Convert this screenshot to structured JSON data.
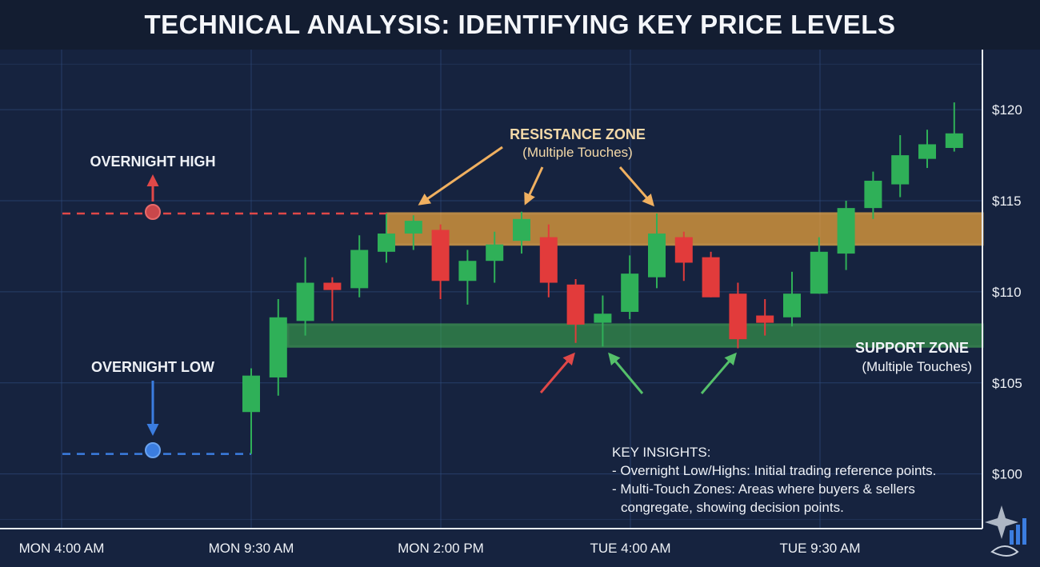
{
  "title": "TECHNICAL ANALYSIS: IDENTIFYING KEY PRICE LEVELS",
  "colors": {
    "background": "#16233f",
    "grid": "#2f4a7a",
    "bullish": "#2fb058",
    "bearish": "#e23b3b",
    "resistance": "#f0a63c",
    "support": "#3fb34f",
    "overnight_high": "#e04848",
    "overnight_low": "#3b7de0",
    "annotation_text": "#f4d9a8"
  },
  "chart_data": {
    "type": "candlestick",
    "title": "TECHNICAL ANALYSIS: IDENTIFYING KEY PRICE LEVELS",
    "xlabel": "",
    "ylabel": "",
    "x_tick_labels": [
      "MON 4:00 AM",
      "MON 9:30 AM",
      "MON 2:00 PM",
      "TUE 4:00 AM",
      "TUE 9:30 AM"
    ],
    "y_tick_labels": [
      "$120",
      "$115",
      "$110",
      "$105",
      "$100"
    ],
    "y_ticks": [
      120,
      115,
      110,
      105,
      100
    ],
    "ylim": [
      97,
      123.3
    ],
    "grid": true,
    "candles": [
      {
        "o": 103.4,
        "h": 105.8,
        "l": 101.1,
        "c": 105.4
      },
      {
        "o": 105.3,
        "h": 109.6,
        "l": 104.3,
        "c": 108.6
      },
      {
        "o": 108.4,
        "h": 111.9,
        "l": 107.6,
        "c": 110.5
      },
      {
        "o": 110.5,
        "h": 110.8,
        "l": 108.4,
        "c": 110.1
      },
      {
        "o": 110.2,
        "h": 113.1,
        "l": 109.7,
        "c": 112.3
      },
      {
        "o": 112.2,
        "h": 114.3,
        "l": 111.6,
        "c": 113.2
      },
      {
        "o": 113.2,
        "h": 114.2,
        "l": 112.3,
        "c": 113.9
      },
      {
        "o": 113.4,
        "h": 113.7,
        "l": 109.6,
        "c": 110.6
      },
      {
        "o": 110.6,
        "h": 112.3,
        "l": 109.3,
        "c": 111.7
      },
      {
        "o": 111.7,
        "h": 113.3,
        "l": 110.5,
        "c": 112.6
      },
      {
        "o": 112.8,
        "h": 114.4,
        "l": 112.1,
        "c": 114.0
      },
      {
        "o": 113.0,
        "h": 113.7,
        "l": 109.7,
        "c": 110.5
      },
      {
        "o": 110.4,
        "h": 110.7,
        "l": 107.2,
        "c": 108.2
      },
      {
        "o": 108.3,
        "h": 109.8,
        "l": 107.0,
        "c": 108.8
      },
      {
        "o": 108.9,
        "h": 112.0,
        "l": 108.5,
        "c": 111.0
      },
      {
        "o": 110.8,
        "h": 114.3,
        "l": 110.2,
        "c": 113.2
      },
      {
        "o": 113.0,
        "h": 113.3,
        "l": 110.6,
        "c": 111.6
      },
      {
        "o": 111.9,
        "h": 112.2,
        "l": 109.7,
        "c": 109.7
      },
      {
        "o": 109.9,
        "h": 110.5,
        "l": 106.9,
        "c": 107.4
      },
      {
        "o": 108.7,
        "h": 109.6,
        "l": 107.6,
        "c": 108.3
      },
      {
        "o": 108.6,
        "h": 111.1,
        "l": 108.1,
        "c": 109.9
      },
      {
        "o": 109.9,
        "h": 113.0,
        "l": 109.9,
        "c": 112.2
      },
      {
        "o": 112.1,
        "h": 115.0,
        "l": 111.2,
        "c": 114.6
      },
      {
        "o": 114.6,
        "h": 116.6,
        "l": 114.0,
        "c": 116.1
      },
      {
        "o": 115.9,
        "h": 118.6,
        "l": 115.2,
        "c": 117.5
      },
      {
        "o": 117.3,
        "h": 118.9,
        "l": 116.8,
        "c": 118.1
      },
      {
        "o": 117.9,
        "h": 120.4,
        "l": 117.7,
        "c": 118.7
      }
    ],
    "resistance_zone": {
      "low": 112.6,
      "high": 114.3
    },
    "support_zone": {
      "low": 107.0,
      "high": 108.2
    },
    "overnight_high": 114.3,
    "overnight_low": 101.1
  },
  "annotations": {
    "overnight_high": "OVERNIGHT HIGH",
    "overnight_low": "OVERNIGHT LOW",
    "resistance_title": "RESISTANCE ZONE",
    "resistance_sub": "(Multiple Touches)",
    "support_title": "SUPPORT ZONE",
    "support_sub": "(Multiple Touches)"
  },
  "insights": {
    "heading": "KEY INSIGHTS:",
    "line1": "- Overnight Low/Highs: Initial trading reference points.",
    "line2": "- Multi-Touch Zones: Areas where buyers & sellers",
    "line3": "congregate, showing decision points."
  },
  "logo_icon": "handshake-chart-icon"
}
